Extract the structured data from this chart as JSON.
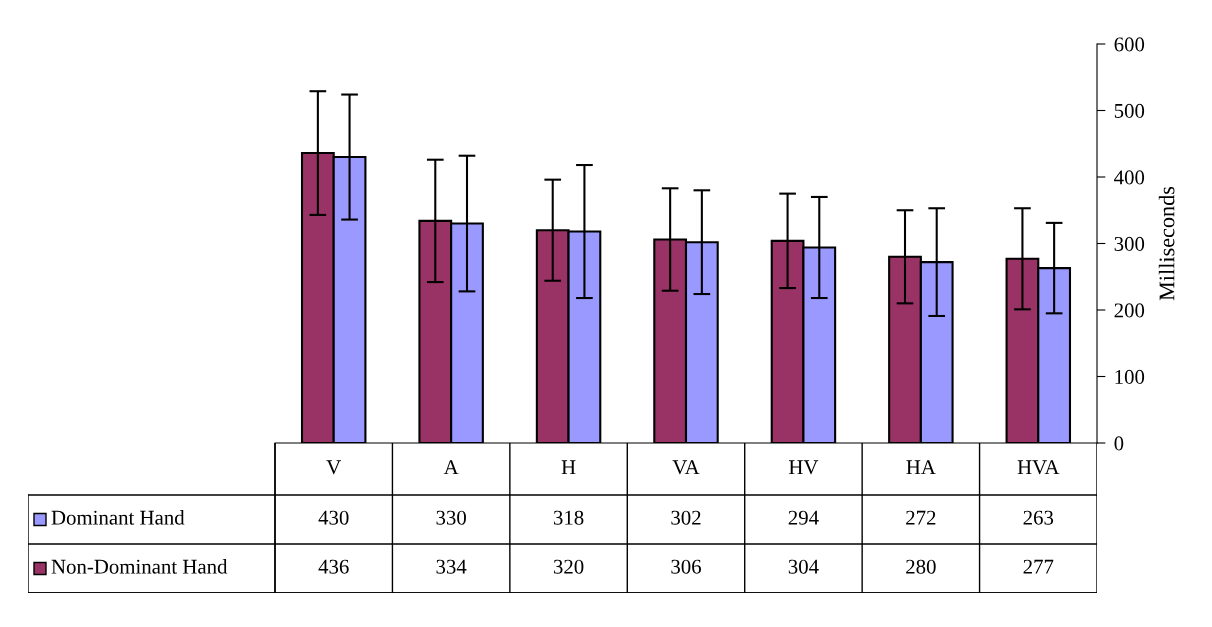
{
  "chart_data": {
    "type": "bar",
    "ylabel": "Milliseconds",
    "categories": [
      "V",
      "A",
      "H",
      "VA",
      "HV",
      "HA",
      "HVA"
    ],
    "series": [
      {
        "name": "Non-Dominant Hand",
        "color": "#993366",
        "values": [
          436,
          334,
          320,
          306,
          304,
          280,
          277
        ],
        "errors": [
          93,
          92,
          76,
          77,
          71,
          70,
          76
        ]
      },
      {
        "name": "Dominant Hand",
        "color": "#9999ff",
        "values": [
          430,
          330,
          318,
          302,
          294,
          272,
          263
        ],
        "errors": [
          94,
          102,
          100,
          78,
          76,
          81,
          68
        ]
      }
    ],
    "ylim": [
      0,
      600
    ],
    "yticks": [
      0,
      100,
      200,
      300,
      400,
      500,
      600
    ],
    "grid": false,
    "legend": "bottom left",
    "data_labels": true
  }
}
